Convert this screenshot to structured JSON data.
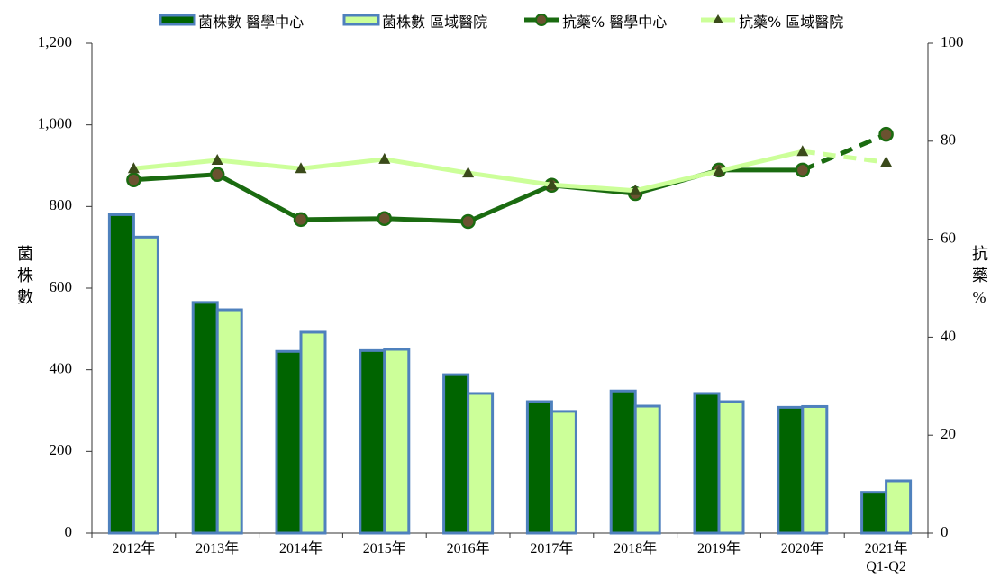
{
  "chart_data": {
    "type": "bar_line",
    "categories": [
      "2012年",
      "2013年",
      "2014年",
      "2015年",
      "2016年",
      "2017年",
      "2018年",
      "2019年",
      "2020年",
      "2021年\nQ1-Q2"
    ],
    "y_label": "菌株數",
    "y2_label": "抗藥%",
    "series": [
      {
        "name": "菌株數 醫學中心",
        "type": "bar",
        "color": "#006400",
        "border": "#4f81bd",
        "values": [
          780,
          565,
          445,
          447,
          388,
          322,
          348,
          342,
          308,
          100
        ]
      },
      {
        "name": "菌株數 區域醫院",
        "type": "bar",
        "color": "#ccff99",
        "border": "#4f81bd",
        "values": [
          725,
          547,
          492,
          450,
          342,
          298,
          311,
          322,
          310,
          128
        ]
      },
      {
        "name": "抗藥% 醫學中心",
        "type": "line",
        "axis": "y2",
        "color": "#1a6b10",
        "marker": "circle",
        "marker_color": "#6b5230",
        "values": [
          72.1,
          73.2,
          64.0,
          64.2,
          63.6,
          71.0,
          69.3,
          74.1,
          74.1,
          81.4
        ]
      },
      {
        "name": "抗藥% 區域醫院",
        "type": "line",
        "axis": "y2",
        "color": "#ccff99",
        "marker": "triangle",
        "marker_color": "#3a4a1a",
        "values": [
          74.4,
          76.1,
          74.4,
          76.3,
          73.5,
          71.1,
          69.9,
          73.9,
          77.9,
          75.7
        ]
      }
    ],
    "last_segment_dashed": true,
    "ylim": [
      0,
      1200
    ],
    "yticks": [
      0,
      200,
      400,
      600,
      800,
      {
        "value": 1000,
        "label": "1,000"
      },
      {
        "value": 1200,
        "label": "1,200"
      }
    ],
    "y2lim": [
      0,
      100
    ],
    "y2ticks": [
      0,
      20,
      40,
      60,
      80,
      100
    ]
  }
}
